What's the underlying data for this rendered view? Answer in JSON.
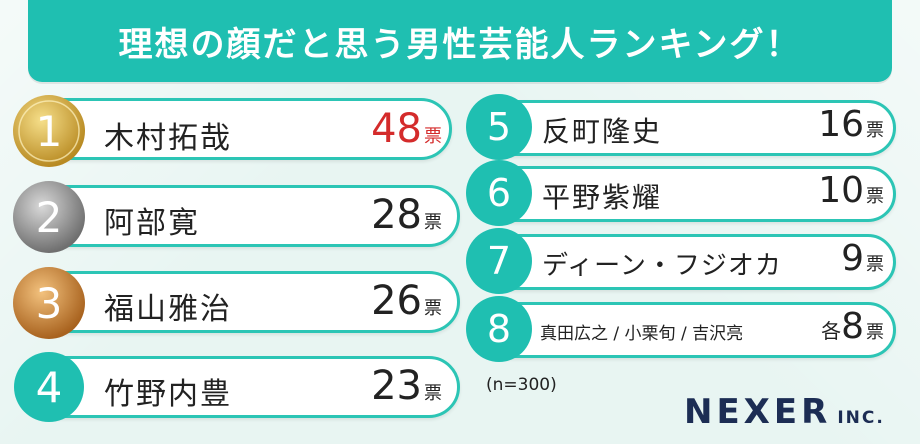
{
  "title": "理想の顔だと思う男性芸能人ランキング！",
  "sample_note": "(n=300)",
  "logo": {
    "main": "NEXER",
    "suffix": "INC."
  },
  "colors": {
    "teal": "#1fbfb1",
    "gold": "#c9a23c",
    "silver": "#8a8a8a",
    "bronze": "#c07a2c",
    "highlight": "#d42b2b"
  },
  "chart_data": {
    "type": "table",
    "title": "理想の顔だと思う男性芸能人ランキング！",
    "unit": "票",
    "rows": [
      {
        "rank": "1",
        "name": "木村拓哉",
        "votes": 48,
        "vote_text": "48",
        "unit": "票",
        "prefix": ""
      },
      {
        "rank": "2",
        "name": "阿部寛",
        "votes": 28,
        "vote_text": "28",
        "unit": "票",
        "prefix": ""
      },
      {
        "rank": "3",
        "name": "福山雅治",
        "votes": 26,
        "vote_text": "26",
        "unit": "票",
        "prefix": ""
      },
      {
        "rank": "4",
        "name": "竹野内豊",
        "votes": 23,
        "vote_text": "23",
        "unit": "票",
        "prefix": ""
      },
      {
        "rank": "5",
        "name": "反町隆史",
        "votes": 16,
        "vote_text": "16",
        "unit": "票",
        "prefix": ""
      },
      {
        "rank": "6",
        "name": "平野紫耀",
        "votes": 10,
        "vote_text": "10",
        "unit": "票",
        "prefix": ""
      },
      {
        "rank": "7",
        "name": "ディーン・フジオカ",
        "votes": 9,
        "vote_text": "9",
        "unit": "票",
        "prefix": ""
      },
      {
        "rank": "8",
        "name": "真田広之 / 小栗旬 / 吉沢亮",
        "votes": 8,
        "vote_text": "8",
        "unit": "票",
        "prefix": "各"
      }
    ]
  }
}
